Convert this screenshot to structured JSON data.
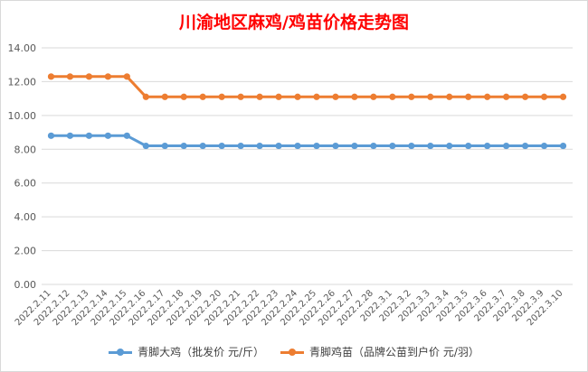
{
  "chart_data": {
    "type": "line",
    "title": "川渝地区麻鸡/鸡苗价格走势图",
    "categories": [
      "2022.2.11",
      "2022.2.12",
      "2022.2.13",
      "2022.2.14",
      "2022.2.15",
      "2022.2.16",
      "2022.2.17",
      "2022.2.18",
      "2022.2.19",
      "2022.2.20",
      "2022.2.21",
      "2022.2.22",
      "2022.2.23",
      "2022.2.24",
      "2022.2.25",
      "2022.2.26",
      "2022.2.27",
      "2022.2.28",
      "2022.3.1",
      "2022.3.2",
      "2022.3.3",
      "2022.3.4",
      "2022.3.5",
      "2022.3.6",
      "2022.3.7",
      "2022.3.8",
      "2022.3.9",
      "2022.3.10"
    ],
    "yticks": [
      "0.00",
      "2.00",
      "4.00",
      "6.00",
      "8.00",
      "10.00",
      "12.00",
      "14.00"
    ],
    "ylim": [
      0,
      14
    ],
    "grid": true,
    "legend_position": "bottom",
    "series": [
      {
        "name": "青脚大鸡（批发价 元/斤）",
        "color": "#5b9bd5",
        "values": [
          8.8,
          8.8,
          8.8,
          8.8,
          8.8,
          8.2,
          8.2,
          8.2,
          8.2,
          8.2,
          8.2,
          8.2,
          8.2,
          8.2,
          8.2,
          8.2,
          8.2,
          8.2,
          8.2,
          8.2,
          8.2,
          8.2,
          8.2,
          8.2,
          8.2,
          8.2,
          8.2,
          8.2
        ]
      },
      {
        "name": "青脚鸡苗（品牌公苗到户价 元/羽）",
        "color": "#ed7d31",
        "values": [
          12.3,
          12.3,
          12.3,
          12.3,
          12.3,
          11.1,
          11.1,
          11.1,
          11.1,
          11.1,
          11.1,
          11.1,
          11.1,
          11.1,
          11.1,
          11.1,
          11.1,
          11.1,
          11.1,
          11.1,
          11.1,
          11.1,
          11.1,
          11.1,
          11.1,
          11.1,
          11.1,
          11.1
        ]
      }
    ]
  }
}
